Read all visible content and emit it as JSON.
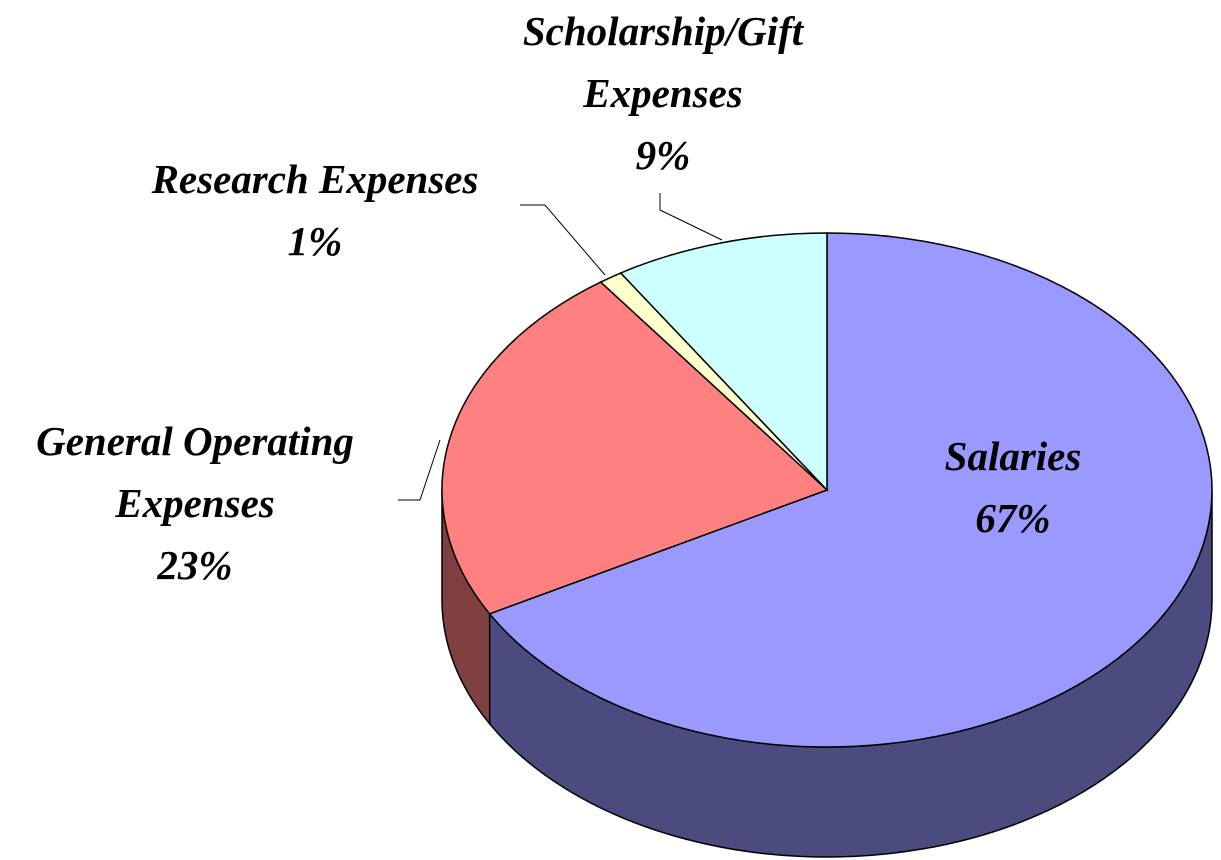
{
  "chart_data": {
    "type": "pie3d",
    "categories": [
      "Salaries",
      "General Operating Expenses",
      "Research Expenses",
      "Scholarship/Gift Expenses"
    ],
    "values": [
      67,
      23,
      1,
      9
    ],
    "value_labels": [
      "67%",
      "23%",
      "1%",
      "9%"
    ],
    "colors": [
      "#9999ff",
      "#ff8080",
      "#ffffcc",
      "#ccffff"
    ],
    "side_colors": [
      "#4b4b80",
      "#804040",
      "#80805f",
      "#5f8080"
    ]
  }
}
